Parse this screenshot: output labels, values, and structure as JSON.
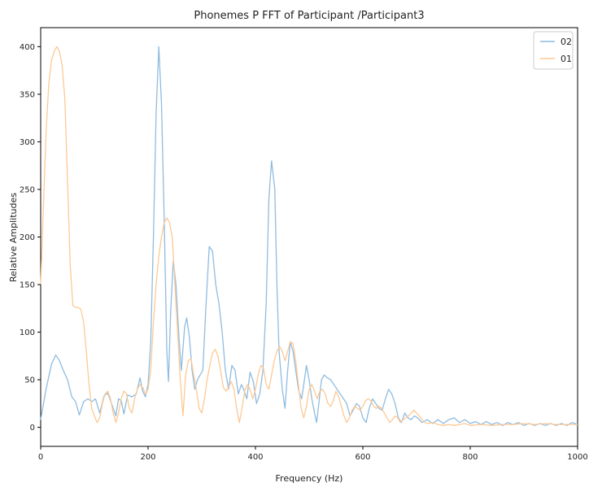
{
  "chart_data": {
    "type": "line",
    "title": "Phonemes P FFT of Participant /Participant3",
    "xlabel": "Frequency (Hz)",
    "ylabel": "Relative Amplitudes",
    "xlim": [
      0,
      1000
    ],
    "ylim": [
      -20,
      420
    ],
    "xticks": [
      0,
      200,
      400,
      600,
      800,
      1000
    ],
    "yticks": [
      0,
      50,
      100,
      150,
      200,
      250,
      300,
      350,
      400
    ],
    "grid": false,
    "legend": "top-right",
    "series": [
      {
        "name": "02",
        "color": "#8fbce0",
        "points": [
          [
            0,
            8
          ],
          [
            10,
            40
          ],
          [
            20,
            66
          ],
          [
            28,
            76
          ],
          [
            35,
            70
          ],
          [
            42,
            60
          ],
          [
            50,
            50
          ],
          [
            58,
            32
          ],
          [
            65,
            27
          ],
          [
            72,
            13
          ],
          [
            80,
            27
          ],
          [
            88,
            30
          ],
          [
            95,
            27
          ],
          [
            102,
            30
          ],
          [
            110,
            15
          ],
          [
            118,
            33
          ],
          [
            125,
            36
          ],
          [
            132,
            25
          ],
          [
            140,
            12
          ],
          [
            145,
            30
          ],
          [
            150,
            28
          ],
          [
            155,
            14
          ],
          [
            162,
            34
          ],
          [
            170,
            32
          ],
          [
            178,
            35
          ],
          [
            185,
            52
          ],
          [
            190,
            38
          ],
          [
            195,
            32
          ],
          [
            200,
            45
          ],
          [
            205,
            90
          ],
          [
            210,
            200
          ],
          [
            215,
            330
          ],
          [
            220,
            400
          ],
          [
            225,
            340
          ],
          [
            230,
            220
          ],
          [
            235,
            80
          ],
          [
            238,
            48
          ],
          [
            242,
            120
          ],
          [
            247,
            175
          ],
          [
            252,
            150
          ],
          [
            258,
            90
          ],
          [
            262,
            60
          ],
          [
            268,
            105
          ],
          [
            272,
            115
          ],
          [
            277,
            95
          ],
          [
            282,
            60
          ],
          [
            287,
            40
          ],
          [
            292,
            50
          ],
          [
            297,
            55
          ],
          [
            302,
            60
          ],
          [
            308,
            130
          ],
          [
            314,
            190
          ],
          [
            320,
            185
          ],
          [
            326,
            150
          ],
          [
            332,
            130
          ],
          [
            338,
            100
          ],
          [
            344,
            60
          ],
          [
            350,
            40
          ],
          [
            356,
            65
          ],
          [
            362,
            60
          ],
          [
            368,
            35
          ],
          [
            374,
            45
          ],
          [
            378,
            40
          ],
          [
            384,
            30
          ],
          [
            390,
            58
          ],
          [
            396,
            48
          ],
          [
            402,
            25
          ],
          [
            408,
            35
          ],
          [
            414,
            60
          ],
          [
            420,
            130
          ],
          [
            425,
            240
          ],
          [
            430,
            280
          ],
          [
            436,
            250
          ],
          [
            440,
            150
          ],
          [
            444,
            80
          ],
          [
            450,
            40
          ],
          [
            455,
            20
          ],
          [
            460,
            60
          ],
          [
            465,
            90
          ],
          [
            470,
            80
          ],
          [
            475,
            60
          ],
          [
            480,
            40
          ],
          [
            486,
            30
          ],
          [
            490,
            45
          ],
          [
            495,
            65
          ],
          [
            500,
            50
          ],
          [
            505,
            30
          ],
          [
            510,
            15
          ],
          [
            514,
            5
          ],
          [
            518,
            25
          ],
          [
            523,
            50
          ],
          [
            528,
            55
          ],
          [
            534,
            52
          ],
          [
            540,
            50
          ],
          [
            546,
            45
          ],
          [
            552,
            40
          ],
          [
            558,
            35
          ],
          [
            564,
            30
          ],
          [
            570,
            25
          ],
          [
            576,
            12
          ],
          [
            582,
            18
          ],
          [
            588,
            25
          ],
          [
            594,
            22
          ],
          [
            600,
            10
          ],
          [
            606,
            5
          ],
          [
            612,
            20
          ],
          [
            618,
            30
          ],
          [
            624,
            25
          ],
          [
            630,
            20
          ],
          [
            636,
            18
          ],
          [
            642,
            30
          ],
          [
            648,
            40
          ],
          [
            654,
            35
          ],
          [
            660,
            25
          ],
          [
            666,
            10
          ],
          [
            672,
            5
          ],
          [
            678,
            15
          ],
          [
            684,
            10
          ],
          [
            690,
            8
          ],
          [
            696,
            12
          ],
          [
            702,
            10
          ],
          [
            710,
            5
          ],
          [
            720,
            8
          ],
          [
            730,
            4
          ],
          [
            740,
            8
          ],
          [
            750,
            4
          ],
          [
            760,
            8
          ],
          [
            770,
            10
          ],
          [
            780,
            5
          ],
          [
            790,
            8
          ],
          [
            800,
            4
          ],
          [
            810,
            6
          ],
          [
            820,
            3
          ],
          [
            830,
            6
          ],
          [
            840,
            3
          ],
          [
            850,
            5
          ],
          [
            860,
            2
          ],
          [
            870,
            5
          ],
          [
            880,
            3
          ],
          [
            890,
            5
          ],
          [
            900,
            2
          ],
          [
            910,
            4
          ],
          [
            920,
            2
          ],
          [
            930,
            4
          ],
          [
            940,
            2
          ],
          [
            950,
            4
          ],
          [
            960,
            2
          ],
          [
            970,
            4
          ],
          [
            980,
            2
          ],
          [
            990,
            5
          ],
          [
            1000,
            3
          ]
        ]
      },
      {
        "name": "01",
        "color": "#fdc994",
        "points": [
          [
            0,
            150
          ],
          [
            5,
            230
          ],
          [
            10,
            310
          ],
          [
            15,
            360
          ],
          [
            20,
            385
          ],
          [
            25,
            395
          ],
          [
            30,
            400
          ],
          [
            35,
            395
          ],
          [
            40,
            380
          ],
          [
            45,
            345
          ],
          [
            50,
            260
          ],
          [
            55,
            170
          ],
          [
            60,
            128
          ],
          [
            65,
            126
          ],
          [
            70,
            126
          ],
          [
            75,
            124
          ],
          [
            80,
            110
          ],
          [
            85,
            80
          ],
          [
            90,
            45
          ],
          [
            95,
            20
          ],
          [
            100,
            12
          ],
          [
            105,
            5
          ],
          [
            110,
            10
          ],
          [
            115,
            25
          ],
          [
            120,
            35
          ],
          [
            125,
            38
          ],
          [
            130,
            30
          ],
          [
            135,
            15
          ],
          [
            140,
            5
          ],
          [
            145,
            15
          ],
          [
            150,
            30
          ],
          [
            155,
            38
          ],
          [
            160,
            35
          ],
          [
            165,
            20
          ],
          [
            170,
            15
          ],
          [
            175,
            30
          ],
          [
            180,
            40
          ],
          [
            185,
            45
          ],
          [
            190,
            42
          ],
          [
            195,
            35
          ],
          [
            200,
            40
          ],
          [
            205,
            60
          ],
          [
            210,
            110
          ],
          [
            215,
            150
          ],
          [
            220,
            180
          ],
          [
            225,
            200
          ],
          [
            230,
            215
          ],
          [
            235,
            220
          ],
          [
            240,
            215
          ],
          [
            245,
            200
          ],
          [
            250,
            150
          ],
          [
            255,
            100
          ],
          [
            260,
            50
          ],
          [
            265,
            12
          ],
          [
            270,
            55
          ],
          [
            275,
            70
          ],
          [
            280,
            72
          ],
          [
            285,
            55
          ],
          [
            290,
            40
          ],
          [
            295,
            20
          ],
          [
            300,
            15
          ],
          [
            305,
            30
          ],
          [
            310,
            50
          ],
          [
            315,
            65
          ],
          [
            320,
            78
          ],
          [
            325,
            82
          ],
          [
            330,
            75
          ],
          [
            335,
            60
          ],
          [
            340,
            42
          ],
          [
            345,
            38
          ],
          [
            350,
            42
          ],
          [
            355,
            48
          ],
          [
            360,
            40
          ],
          [
            365,
            20
          ],
          [
            370,
            5
          ],
          [
            375,
            20
          ],
          [
            380,
            38
          ],
          [
            385,
            45
          ],
          [
            390,
            40
          ],
          [
            395,
            30
          ],
          [
            400,
            40
          ],
          [
            405,
            55
          ],
          [
            410,
            65
          ],
          [
            415,
            62
          ],
          [
            420,
            45
          ],
          [
            425,
            40
          ],
          [
            430,
            55
          ],
          [
            435,
            70
          ],
          [
            440,
            80
          ],
          [
            445,
            85
          ],
          [
            450,
            80
          ],
          [
            455,
            70
          ],
          [
            460,
            80
          ],
          [
            465,
            90
          ],
          [
            470,
            88
          ],
          [
            475,
            70
          ],
          [
            480,
            45
          ],
          [
            485,
            20
          ],
          [
            490,
            10
          ],
          [
            495,
            22
          ],
          [
            500,
            40
          ],
          [
            505,
            45
          ],
          [
            510,
            38
          ],
          [
            515,
            30
          ],
          [
            520,
            38
          ],
          [
            525,
            40
          ],
          [
            530,
            35
          ],
          [
            535,
            25
          ],
          [
            540,
            22
          ],
          [
            545,
            28
          ],
          [
            550,
            38
          ],
          [
            555,
            32
          ],
          [
            560,
            22
          ],
          [
            565,
            12
          ],
          [
            570,
            5
          ],
          [
            575,
            10
          ],
          [
            580,
            18
          ],
          [
            585,
            22
          ],
          [
            590,
            20
          ],
          [
            595,
            18
          ],
          [
            600,
            22
          ],
          [
            605,
            28
          ],
          [
            610,
            30
          ],
          [
            615,
            28
          ],
          [
            620,
            22
          ],
          [
            625,
            20
          ],
          [
            630,
            22
          ],
          [
            635,
            20
          ],
          [
            640,
            15
          ],
          [
            645,
            10
          ],
          [
            650,
            5
          ],
          [
            655,
            8
          ],
          [
            660,
            12
          ],
          [
            665,
            10
          ],
          [
            670,
            5
          ],
          [
            675,
            8
          ],
          [
            680,
            10
          ],
          [
            685,
            12
          ],
          [
            690,
            15
          ],
          [
            695,
            18
          ],
          [
            700,
            15
          ],
          [
            705,
            12
          ],
          [
            710,
            8
          ],
          [
            715,
            5
          ],
          [
            720,
            4
          ],
          [
            730,
            5
          ],
          [
            740,
            3
          ],
          [
            750,
            2
          ],
          [
            760,
            3
          ],
          [
            770,
            2
          ],
          [
            780,
            3
          ],
          [
            790,
            4
          ],
          [
            800,
            2
          ],
          [
            820,
            3
          ],
          [
            840,
            2
          ],
          [
            860,
            3
          ],
          [
            880,
            3
          ],
          [
            900,
            4
          ],
          [
            920,
            3
          ],
          [
            940,
            4
          ],
          [
            960,
            3
          ],
          [
            980,
            3
          ],
          [
            1000,
            3
          ]
        ]
      }
    ]
  }
}
